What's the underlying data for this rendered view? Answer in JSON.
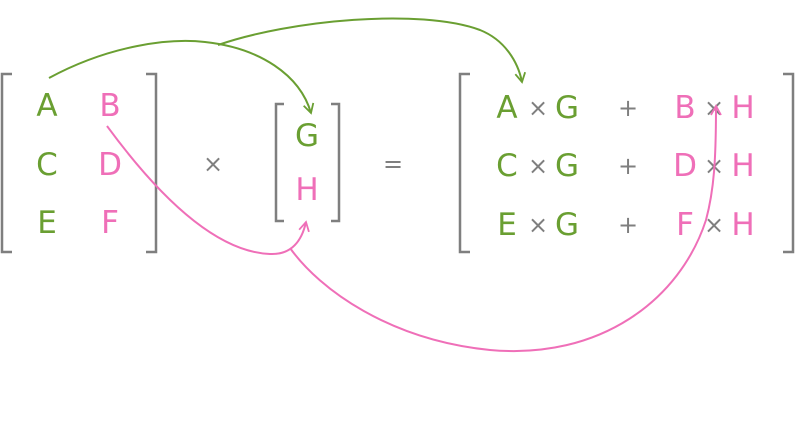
{
  "colors": {
    "green": "#6a9f32",
    "pink": "#ef6fb8",
    "gray": "#7f7f7f"
  },
  "left_matrix": {
    "rows": [
      [
        "A",
        "B"
      ],
      [
        "C",
        "D"
      ],
      [
        "E",
        "F"
      ]
    ]
  },
  "right_vector": {
    "rows": [
      "G",
      "H"
    ]
  },
  "operators": {
    "times": "×",
    "equals": "=",
    "plus": "+"
  },
  "result_matrix": {
    "rows": [
      {
        "a": "A",
        "g": "G",
        "b": "B",
        "h": "H"
      },
      {
        "a": "C",
        "g": "G",
        "b": "D",
        "h": "H"
      },
      {
        "a": "E",
        "g": "G",
        "b": "F",
        "h": "H"
      }
    ]
  }
}
